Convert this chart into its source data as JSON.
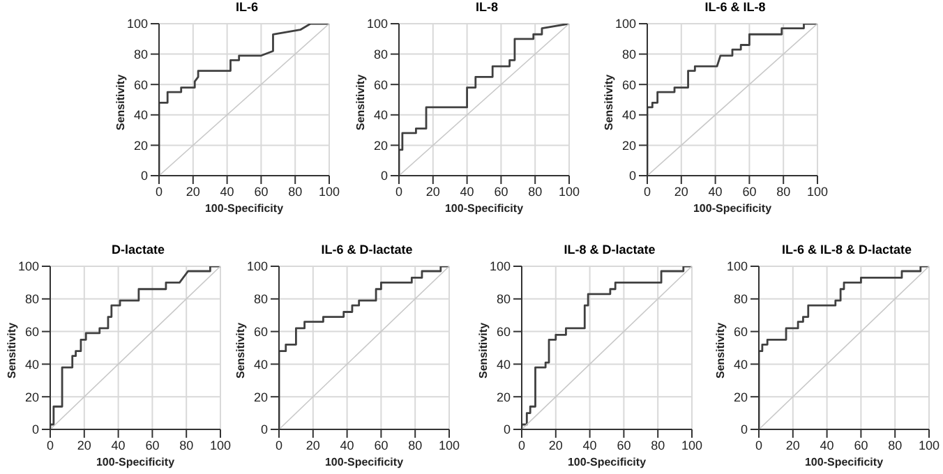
{
  "chart_data": [
    {
      "type": "line",
      "title": "IL-6",
      "xlabel": "100-Specificity",
      "ylabel": "Sensitivity",
      "xlim": [
        0,
        100
      ],
      "ylim": [
        0,
        100
      ],
      "xticks": [
        0,
        20,
        40,
        60,
        80,
        100
      ],
      "yticks": [
        0,
        20,
        40,
        60,
        80,
        100
      ],
      "grid": true,
      "series": [
        {
          "color": "#404040",
          "x": [
            0,
            0,
            5,
            5,
            13,
            13,
            21,
            21,
            23,
            23,
            42,
            42,
            47,
            47,
            60,
            67,
            67,
            83,
            89,
            100
          ],
          "values": [
            0,
            48,
            48,
            55,
            55,
            58,
            58,
            62,
            65,
            69,
            69,
            76,
            76,
            79,
            79,
            82,
            93,
            96,
            100,
            100
          ]
        },
        {
          "color": "#c8c8c8",
          "x": [
            0,
            100
          ],
          "values": [
            0,
            100
          ]
        }
      ]
    },
    {
      "type": "line",
      "title": "IL-8",
      "xlabel": "100-Specificity",
      "ylabel": "Sensitivity",
      "xlim": [
        0,
        100
      ],
      "ylim": [
        0,
        100
      ],
      "xticks": [
        0,
        20,
        40,
        60,
        80,
        100
      ],
      "yticks": [
        0,
        20,
        40,
        60,
        80,
        100
      ],
      "grid": true,
      "series": [
        {
          "color": "#404040",
          "x": [
            0,
            0,
            2,
            2,
            10,
            10,
            16,
            16,
            40,
            40,
            45,
            45,
            55,
            55,
            65,
            65,
            68,
            68,
            79,
            79,
            84,
            84,
            100
          ],
          "values": [
            0,
            17,
            17,
            28,
            28,
            31,
            31,
            45,
            45,
            58,
            58,
            65,
            65,
            72,
            72,
            76,
            76,
            90,
            90,
            93,
            93,
            97,
            100
          ]
        },
        {
          "color": "#c8c8c8",
          "x": [
            0,
            100
          ],
          "values": [
            0,
            100
          ]
        }
      ]
    },
    {
      "type": "line",
      "title": "IL-6 & IL-8",
      "xlabel": "100-Specificity",
      "ylabel": "Sensitivity",
      "xlim": [
        0,
        100
      ],
      "ylim": [
        0,
        100
      ],
      "xticks": [
        0,
        20,
        40,
        60,
        80,
        100
      ],
      "yticks": [
        0,
        20,
        40,
        60,
        80,
        100
      ],
      "grid": true,
      "series": [
        {
          "color": "#404040",
          "x": [
            0,
            0,
            3,
            3,
            6,
            6,
            16,
            16,
            24,
            24,
            28,
            28,
            41,
            43,
            50,
            50,
            55,
            55,
            60,
            60,
            79,
            79,
            92,
            92,
            100
          ],
          "values": [
            0,
            45,
            45,
            48,
            48,
            55,
            55,
            58,
            58,
            69,
            69,
            72,
            72,
            79,
            79,
            83,
            83,
            86,
            86,
            93,
            93,
            97,
            97,
            100,
            100
          ]
        },
        {
          "color": "#c8c8c8",
          "x": [
            0,
            100
          ],
          "values": [
            0,
            100
          ]
        }
      ]
    },
    {
      "type": "line",
      "title": "D-lactate",
      "xlabel": "100-Specificity",
      "ylabel": "Sensitivity",
      "xlim": [
        0,
        100
      ],
      "ylim": [
        0,
        100
      ],
      "xticks": [
        0,
        20,
        40,
        60,
        80,
        100
      ],
      "yticks": [
        0,
        20,
        40,
        60,
        80,
        100
      ],
      "grid": true,
      "series": [
        {
          "color": "#404040",
          "x": [
            0,
            0,
            2,
            2,
            7,
            7,
            13,
            13,
            15,
            15,
            18,
            18,
            21,
            21,
            29,
            29,
            34,
            34,
            36,
            36,
            41,
            41,
            52,
            52,
            68,
            68,
            76,
            81,
            94,
            94,
            100
          ],
          "values": [
            0,
            3,
            3,
            14,
            14,
            38,
            38,
            45,
            45,
            48,
            48,
            55,
            55,
            59,
            59,
            62,
            62,
            69,
            69,
            76,
            76,
            79,
            79,
            86,
            86,
            90,
            90,
            97,
            97,
            100,
            100
          ]
        },
        {
          "color": "#c8c8c8",
          "x": [
            0,
            100
          ],
          "values": [
            0,
            100
          ]
        }
      ]
    },
    {
      "type": "line",
      "title": "IL-6 & D-lactate",
      "xlabel": "100-Specificity",
      "ylabel": "Sensitivity",
      "xlim": [
        0,
        100
      ],
      "ylim": [
        0,
        100
      ],
      "xticks": [
        0,
        20,
        40,
        60,
        80,
        100
      ],
      "yticks": [
        0,
        20,
        40,
        60,
        80,
        100
      ],
      "grid": true,
      "series": [
        {
          "color": "#404040",
          "x": [
            0,
            0,
            4,
            4,
            10,
            10,
            15,
            15,
            26,
            26,
            38,
            38,
            43,
            43,
            47,
            47,
            57,
            57,
            60,
            60,
            78,
            78,
            84,
            84,
            95,
            95,
            100
          ],
          "values": [
            0,
            48,
            48,
            52,
            52,
            62,
            62,
            66,
            66,
            69,
            69,
            72,
            72,
            76,
            76,
            79,
            79,
            86,
            86,
            90,
            90,
            93,
            93,
            97,
            97,
            100,
            100
          ]
        },
        {
          "color": "#c8c8c8",
          "x": [
            0,
            100
          ],
          "values": [
            0,
            100
          ]
        }
      ]
    },
    {
      "type": "line",
      "title": "IL-8 & D-lactate",
      "xlabel": "100-Specificity",
      "ylabel": "Sensitivity",
      "xlim": [
        0,
        100
      ],
      "ylim": [
        0,
        100
      ],
      "xticks": [
        0,
        20,
        40,
        60,
        80,
        100
      ],
      "yticks": [
        0,
        20,
        40,
        60,
        80,
        100
      ],
      "grid": true,
      "series": [
        {
          "color": "#404040",
          "x": [
            0,
            0,
            3,
            3,
            5,
            5,
            8,
            8,
            14,
            14,
            16,
            16,
            20,
            20,
            26,
            26,
            37,
            37,
            39,
            39,
            52,
            52,
            55,
            55,
            82,
            82,
            95,
            95,
            100
          ],
          "values": [
            0,
            3,
            3,
            10,
            10,
            14,
            14,
            38,
            38,
            41,
            41,
            55,
            55,
            58,
            58,
            62,
            62,
            76,
            76,
            83,
            83,
            86,
            86,
            90,
            90,
            97,
            97,
            100,
            100
          ]
        },
        {
          "color": "#c8c8c8",
          "x": [
            0,
            100
          ],
          "values": [
            0,
            100
          ]
        }
      ]
    },
    {
      "type": "line",
      "title": "IL-6 & IL-8 & D-lactate",
      "xlabel": "100-Specificity",
      "ylabel": "Sensitivity",
      "xlim": [
        0,
        100
      ],
      "ylim": [
        0,
        100
      ],
      "xticks": [
        0,
        20,
        40,
        60,
        80,
        100
      ],
      "yticks": [
        0,
        20,
        40,
        60,
        80,
        100
      ],
      "grid": true,
      "series": [
        {
          "color": "#404040",
          "x": [
            0,
            0,
            2,
            2,
            5,
            5,
            16,
            16,
            23,
            23,
            26,
            26,
            29,
            29,
            45,
            45,
            48,
            48,
            50,
            50,
            60,
            60,
            84,
            84,
            95,
            95,
            100
          ],
          "values": [
            0,
            48,
            48,
            52,
            52,
            55,
            55,
            62,
            62,
            66,
            66,
            69,
            69,
            76,
            76,
            79,
            79,
            86,
            86,
            90,
            90,
            93,
            93,
            97,
            97,
            100,
            100
          ]
        },
        {
          "color": "#c8c8c8",
          "x": [
            0,
            100
          ],
          "values": [
            0,
            100
          ]
        }
      ]
    }
  ]
}
